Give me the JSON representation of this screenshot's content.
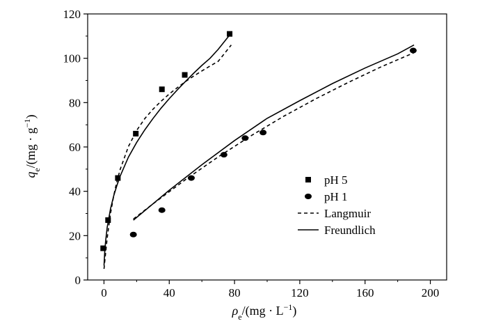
{
  "chart_data": {
    "type": "scatter",
    "title": "",
    "xlabel": {
      "symbol": "ρ",
      "sub": "e",
      "unit": "/(mg · L",
      "sup": "−1",
      "close": ")"
    },
    "ylabel": {
      "symbol": "q",
      "sub": "e",
      "unit": "/(mg · g",
      "sup": "−1",
      "close": ")"
    },
    "xlim": [
      -10,
      210
    ],
    "ylim": [
      0,
      120
    ],
    "xticks": [
      0,
      40,
      80,
      120,
      160,
      200
    ],
    "yticks": [
      0,
      20,
      40,
      60,
      80,
      100,
      120
    ],
    "grid": false,
    "legend_position": "right",
    "series": [
      {
        "name": "pH 5",
        "marker": "square",
        "x": [
          -0.5,
          2.5,
          8.5,
          19.5,
          35.5,
          49.5,
          77.0
        ],
        "y": [
          14.3,
          27.0,
          46.0,
          66.0,
          86.0,
          92.5,
          111.0
        ]
      },
      {
        "name": "pH 1",
        "marker": "circle",
        "x": [
          18.0,
          35.5,
          53.5,
          73.5,
          86.5,
          97.5,
          189.5
        ],
        "y": [
          20.5,
          31.5,
          46.0,
          56.5,
          64.0,
          66.5,
          103.5
        ]
      }
    ],
    "fits": [
      {
        "name": "Langmuir",
        "style": "dashed",
        "curves": [
          {
            "x": [
              0,
              1,
              2,
              4,
              6,
              8,
              10,
              15,
              20,
              25,
              30,
              35,
              40,
              45,
              50,
              55,
              60,
              65,
              70,
              78
            ],
            "y": [
              5.0,
              12.2,
              19.0,
              29.9,
              38.1,
              44.7,
              50.0,
              60.2,
              67.4,
              72.8,
              77.0,
              80.6,
              83.9,
              86.8,
              89.5,
              92.0,
              94.3,
              96.5,
              98.6,
              106.0
            ]
          },
          {
            "x": [
              18,
              30,
              50,
              70,
              90,
              110,
              130,
              150,
              170,
              190
            ],
            "y": [
              27.5,
              34.3,
              45.3,
              55.5,
              65.0,
              73.8,
              81.8,
              89.2,
              96.2,
              102.5
            ]
          }
        ]
      },
      {
        "name": "Freundlich",
        "style": "solid",
        "curves": [
          {
            "x": [
              0,
              0.5,
              1,
              2,
              4,
              6,
              8,
              10,
              15,
              20,
              25,
              30,
              35,
              40,
              45,
              50,
              55,
              60,
              65,
              70,
              77
            ],
            "y": [
              6.5,
              13.0,
              17.5,
              23.8,
              32.0,
              38.0,
              42.8,
              47.0,
              55.4,
              62.0,
              67.7,
              72.8,
              77.5,
              81.8,
              85.8,
              89.6,
              93.3,
              96.8,
              100.0,
              104.0,
              110.5
            ]
          },
          {
            "x": [
              18,
              40,
              60,
              80,
              100,
              120,
              140,
              160,
              180,
              190
            ],
            "y": [
              27.0,
              40.5,
              52.0,
              62.9,
              72.9,
              80.9,
              88.6,
              95.6,
              102.0,
              106.0
            ]
          }
        ]
      }
    ]
  }
}
